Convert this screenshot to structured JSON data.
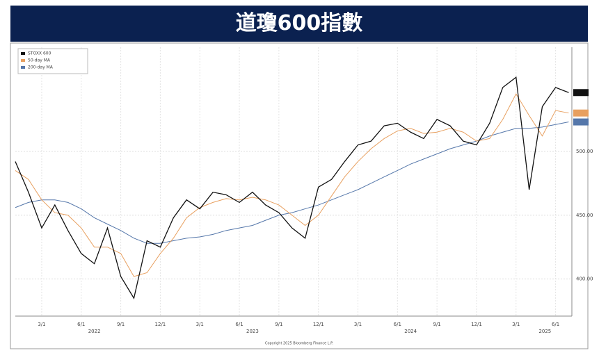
{
  "header": {
    "title": "道瓊600指數"
  },
  "chart_data": {
    "type": "line",
    "x": [
      2022.0,
      2022.083,
      2022.167,
      2022.25,
      2022.333,
      2022.417,
      2022.5,
      2022.583,
      2022.667,
      2022.75,
      2022.833,
      2022.917,
      2023.0,
      2023.083,
      2023.167,
      2023.25,
      2023.333,
      2023.417,
      2023.5,
      2023.583,
      2023.667,
      2023.75,
      2023.833,
      2023.917,
      2024.0,
      2024.083,
      2024.167,
      2024.25,
      2024.333,
      2024.417,
      2024.5,
      2024.583,
      2024.667,
      2024.75,
      2024.833,
      2024.917,
      2025.0,
      2025.083,
      2025.167,
      2025.25,
      2025.333,
      2025.417,
      2025.5
    ],
    "series": [
      {
        "name": "STOXX 600",
        "color": "#111111",
        "values": [
          492,
          468,
          440,
          458,
          438,
          420,
          412,
          440,
          402,
          385,
          430,
          425,
          448,
          462,
          455,
          468,
          466,
          460,
          468,
          458,
          452,
          440,
          432,
          472,
          478,
          492,
          505,
          508,
          520,
          522,
          515,
          510,
          525,
          520,
          508,
          505,
          522,
          550,
          558,
          470,
          535,
          550,
          546
        ]
      },
      {
        "name": "50-day MA",
        "color": "#e8a060",
        "values": [
          485,
          478,
          462,
          452,
          450,
          440,
          425,
          425,
          420,
          402,
          405,
          420,
          432,
          448,
          456,
          460,
          463,
          462,
          464,
          462,
          458,
          450,
          442,
          450,
          465,
          480,
          492,
          502,
          510,
          516,
          518,
          514,
          515,
          518,
          515,
          508,
          510,
          525,
          545,
          528,
          512,
          532,
          530
        ]
      },
      {
        "name": "200-day MA",
        "color": "#5577aa",
        "values": [
          456,
          460,
          462,
          462,
          460,
          455,
          448,
          443,
          438,
          432,
          428,
          428,
          430,
          432,
          433,
          435,
          438,
          440,
          442,
          446,
          450,
          452,
          455,
          458,
          462,
          466,
          470,
          475,
          480,
          485,
          490,
          494,
          498,
          502,
          505,
          508,
          512,
          515,
          518,
          518,
          519,
          521,
          523
        ]
      }
    ],
    "xlim": [
      2022.0,
      2025.52
    ],
    "ylim": [
      371,
      581.5
    ],
    "xticks": [
      {
        "value": 2022.167,
        "label": "3/1"
      },
      {
        "value": 2022.417,
        "label": "6/1"
      },
      {
        "value": 2022.667,
        "label": "9/1"
      },
      {
        "value": 2022.917,
        "label": "12/1"
      },
      {
        "value": 2023.167,
        "label": "3/1"
      },
      {
        "value": 2023.417,
        "label": "6/1"
      },
      {
        "value": 2023.667,
        "label": "9/1"
      },
      {
        "value": 2023.917,
        "label": "12/1"
      },
      {
        "value": 2024.167,
        "label": "3/1"
      },
      {
        "value": 2024.417,
        "label": "6/1"
      },
      {
        "value": 2024.667,
        "label": "9/1"
      },
      {
        "value": 2024.917,
        "label": "12/1"
      },
      {
        "value": 2025.167,
        "label": "3/1"
      },
      {
        "value": 2025.417,
        "label": "6/1"
      }
    ],
    "x_group_labels": [
      {
        "value": 2022.5,
        "label": "2022"
      },
      {
        "value": 2023.5,
        "label": "2023"
      },
      {
        "value": 2024.5,
        "label": "2024"
      },
      {
        "value": 2025.35,
        "label": "2025"
      }
    ],
    "yticks": [
      {
        "value": 400,
        "label": "400.00"
      },
      {
        "value": 450,
        "label": "450.00"
      },
      {
        "value": 500,
        "label": "500.00"
      }
    ],
    "grid": true,
    "source": "Copyright 2025 Bloomberg Finance L.P."
  }
}
